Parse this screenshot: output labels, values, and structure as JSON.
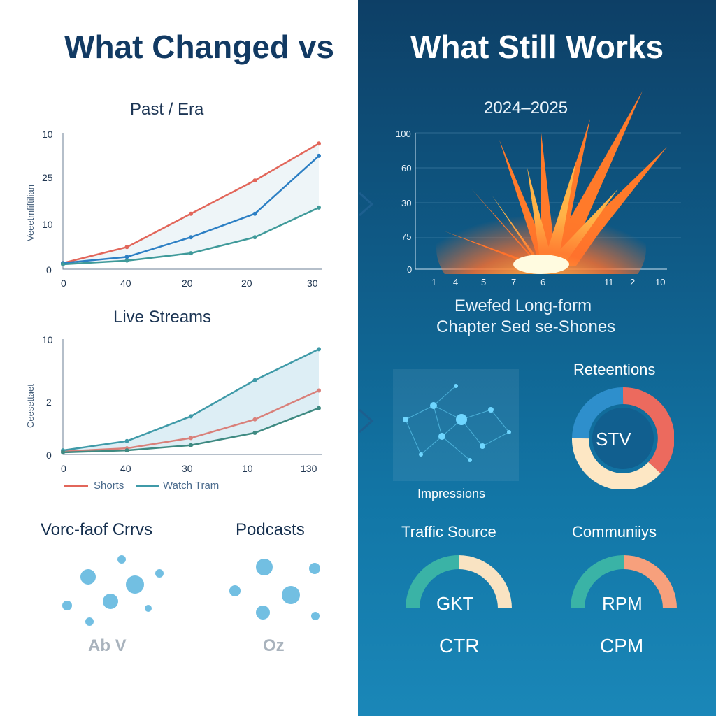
{
  "titles": {
    "left": "What Changed vs",
    "right": "What Still Works"
  },
  "left": {
    "chart1": {
      "title": "Past / Era",
      "ylabel": "Veeetmfiftilian",
      "yticks": [
        "10",
        "25",
        "10",
        "0"
      ],
      "xticks": [
        "0",
        "40",
        "20",
        "20",
        "30"
      ]
    },
    "chart2": {
      "title": "Live Streams",
      "ylabel": "Ceesettaet",
      "yticks": [
        "10",
        "2",
        "0"
      ],
      "xticks": [
        "0",
        "40",
        "30",
        "10",
        "130"
      ],
      "legend": [
        "Shorts",
        "Watch Tram"
      ]
    },
    "bubbles": [
      {
        "title": "Vorc-faof Crrvs",
        "label": "Ab V"
      },
      {
        "title": "Podcasts",
        "label": "Oz"
      }
    ]
  },
  "right": {
    "burst": {
      "title": "2024–2025",
      "yticks": [
        "100",
        "60",
        "30",
        "75",
        "0"
      ],
      "xticks": [
        "1",
        "4",
        "5",
        "7",
        "6",
        "11",
        "2",
        "10"
      ],
      "caption_line1": "Ewefed Long-form",
      "caption_line2": "Chapter Sed se-Shones"
    },
    "network_label": "Impressions",
    "retention": {
      "title": "Reteentions",
      "center": "STV"
    },
    "gauges": [
      {
        "title": "Traffic Source",
        "center": "GKT",
        "label": "CTR"
      },
      {
        "title": "Communiiys",
        "center": "RPM",
        "label": "CPM"
      }
    ]
  },
  "colors": {
    "red": "#e2665a",
    "blue": "#2c7fc4",
    "teal": "#3f9a9a",
    "navy": "#123a63"
  },
  "chart_data": [
    {
      "type": "line",
      "title": "Past / Era",
      "xlabel": "",
      "ylabel": "Veeetmfiftilian",
      "x": [
        0,
        1,
        2,
        3,
        4
      ],
      "series": [
        {
          "values": [
            0.5,
            1.8,
            4.5,
            7.2,
            10.2
          ]
        },
        {
          "values": [
            0.5,
            1.0,
            2.6,
            4.5,
            9.2
          ]
        },
        {
          "values": [
            0.4,
            0.7,
            1.3,
            2.6,
            5.0
          ]
        }
      ]
    },
    {
      "type": "line",
      "title": "Live Streams",
      "xlabel": "",
      "ylabel": "Ceesettaet",
      "x": [
        0,
        1,
        2,
        3,
        4
      ],
      "series": [
        {
          "name": "Shorts",
          "values": [
            0.3,
            0.6,
            1.6,
            3.4,
            6.2
          ]
        },
        {
          "name": "Watch Tram",
          "values": [
            0.4,
            1.3,
            3.7,
            7.2,
            10.2
          ]
        },
        {
          "values": [
            0.2,
            0.4,
            0.9,
            2.1,
            4.5
          ]
        }
      ]
    }
  ]
}
